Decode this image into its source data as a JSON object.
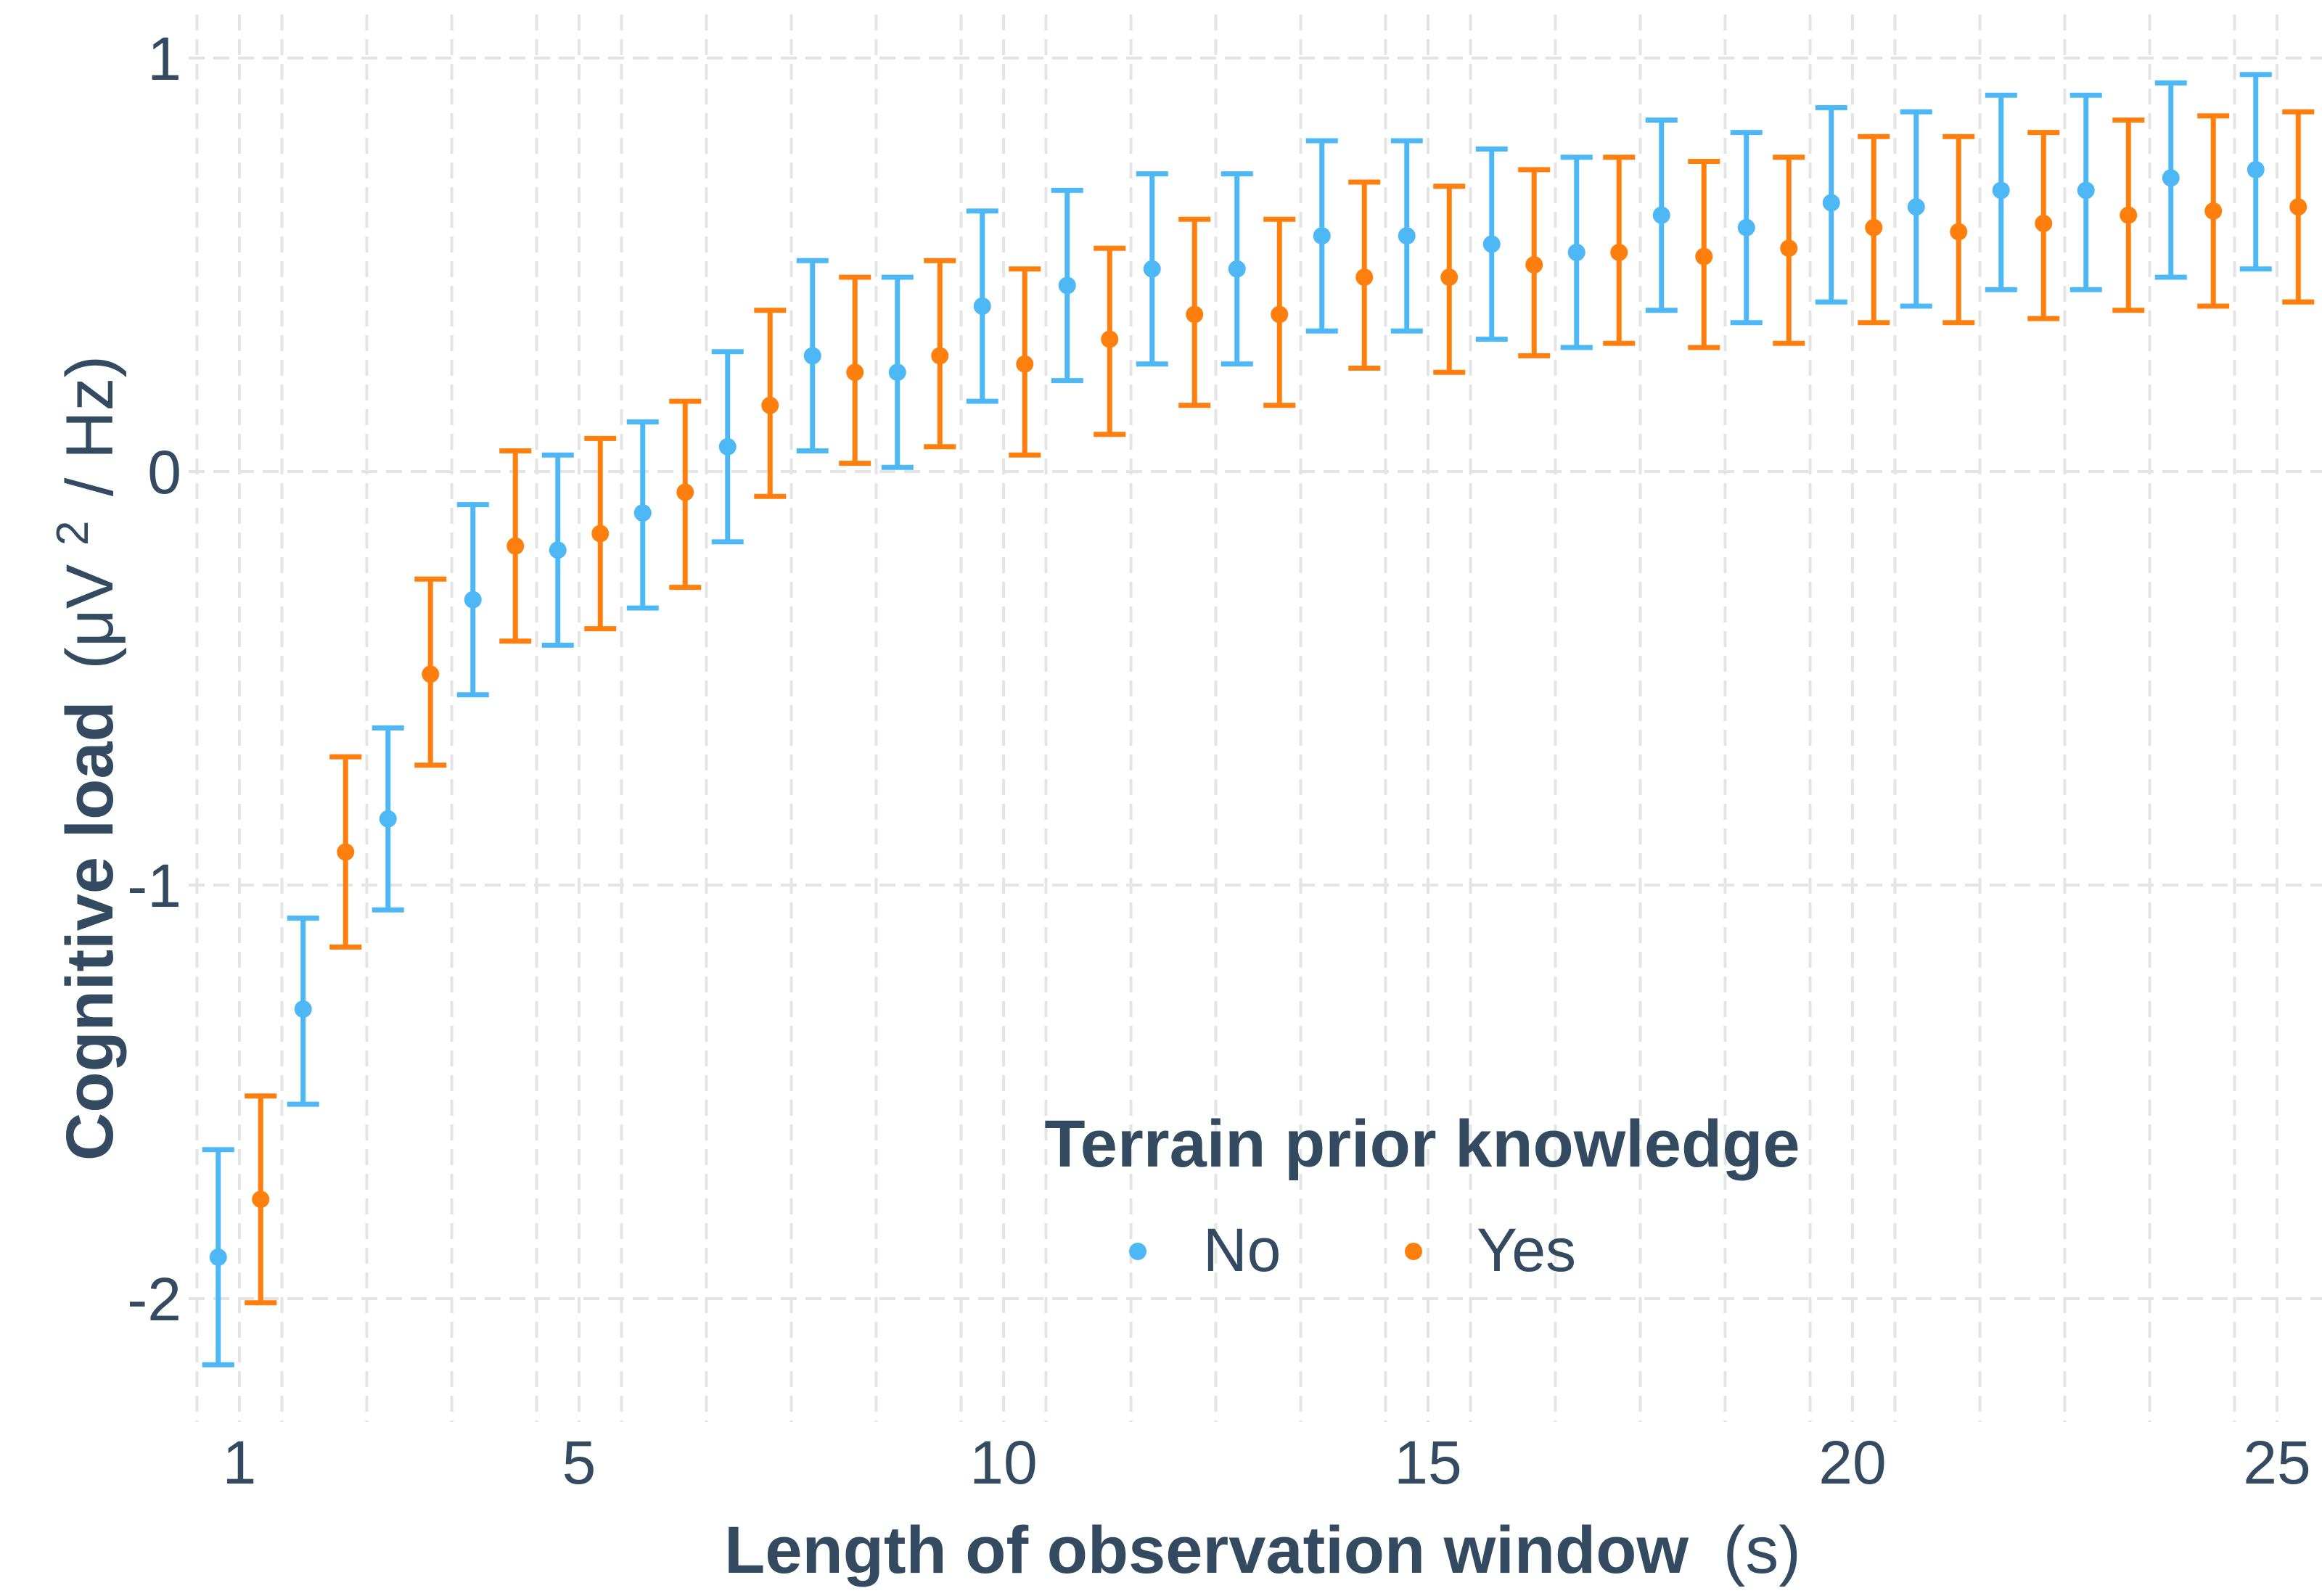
{
  "chart_data": {
    "type": "scatter",
    "title": "",
    "xlabel": {
      "bold": "Length of observation window",
      "unit": "(s)"
    },
    "ylabel": {
      "bold": "Cognitive load",
      "unit_open": "(μV",
      "unit_sup": "2",
      "unit_close": "/ Hz)"
    },
    "xlim": [
      0.9,
      25.6
    ],
    "ylim": [
      -2.3,
      1.1
    ],
    "x_ticks": [
      "1",
      "5",
      "10",
      "15",
      "20",
      "25"
    ],
    "x_tick_values": [
      1,
      5,
      10,
      15,
      20,
      25
    ],
    "y_ticks": [
      "1",
      "0",
      "-1",
      "-2"
    ],
    "y_tick_values": [
      1,
      0,
      -1,
      -2
    ],
    "grid": true,
    "legend": {
      "title": "Terrain prior knowledge",
      "placement": "bottom-right-inside",
      "entries": [
        {
          "label": "No",
          "color": "#4db8f5"
        },
        {
          "label": "Yes",
          "color": "#ff7f0e"
        }
      ]
    },
    "series": [
      {
        "name": "No",
        "color": "#4db8f5",
        "points": [
          {
            "x": 0.75,
            "y": -1.9,
            "lo": -2.16,
            "hi": -1.64
          },
          {
            "x": 1.75,
            "y": -1.3,
            "lo": -1.53,
            "hi": -1.08
          },
          {
            "x": 2.75,
            "y": -0.84,
            "lo": -1.06,
            "hi": -0.62
          },
          {
            "x": 3.75,
            "y": -0.31,
            "lo": -0.54,
            "hi": -0.08
          },
          {
            "x": 4.75,
            "y": -0.19,
            "lo": -0.42,
            "hi": 0.04
          },
          {
            "x": 5.75,
            "y": -0.1,
            "lo": -0.33,
            "hi": 0.12
          },
          {
            "x": 6.75,
            "y": 0.06,
            "lo": -0.17,
            "hi": 0.29
          },
          {
            "x": 7.75,
            "y": 0.28,
            "lo": 0.05,
            "hi": 0.51
          },
          {
            "x": 8.75,
            "y": 0.24,
            "lo": 0.01,
            "hi": 0.47
          },
          {
            "x": 9.75,
            "y": 0.4,
            "lo": 0.17,
            "hi": 0.63
          },
          {
            "x": 10.75,
            "y": 0.45,
            "lo": 0.22,
            "hi": 0.68
          },
          {
            "x": 11.75,
            "y": 0.49,
            "lo": 0.26,
            "hi": 0.72
          },
          {
            "x": 12.75,
            "y": 0.49,
            "lo": 0.26,
            "hi": 0.72
          },
          {
            "x": 13.75,
            "y": 0.57,
            "lo": 0.34,
            "hi": 0.8
          },
          {
            "x": 14.75,
            "y": 0.57,
            "lo": 0.34,
            "hi": 0.8
          },
          {
            "x": 15.75,
            "y": 0.55,
            "lo": 0.32,
            "hi": 0.78
          },
          {
            "x": 16.75,
            "y": 0.53,
            "lo": 0.3,
            "hi": 0.76
          },
          {
            "x": 17.75,
            "y": 0.62,
            "lo": 0.39,
            "hi": 0.85
          },
          {
            "x": 18.75,
            "y": 0.59,
            "lo": 0.36,
            "hi": 0.82
          },
          {
            "x": 19.75,
            "y": 0.65,
            "lo": 0.41,
            "hi": 0.88
          },
          {
            "x": 20.75,
            "y": 0.64,
            "lo": 0.4,
            "hi": 0.87
          },
          {
            "x": 21.75,
            "y": 0.68,
            "lo": 0.44,
            "hi": 0.91
          },
          {
            "x": 22.75,
            "y": 0.68,
            "lo": 0.44,
            "hi": 0.91
          },
          {
            "x": 23.75,
            "y": 0.71,
            "lo": 0.47,
            "hi": 0.94
          },
          {
            "x": 24.75,
            "y": 0.73,
            "lo": 0.49,
            "hi": 0.96
          }
        ]
      },
      {
        "name": "Yes",
        "color": "#ff7f0e",
        "points": [
          {
            "x": 1.25,
            "y": -1.76,
            "lo": -2.01,
            "hi": -1.51
          },
          {
            "x": 2.25,
            "y": -0.92,
            "lo": -1.15,
            "hi": -0.69
          },
          {
            "x": 3.25,
            "y": -0.49,
            "lo": -0.71,
            "hi": -0.26
          },
          {
            "x": 4.25,
            "y": -0.18,
            "lo": -0.41,
            "hi": 0.05
          },
          {
            "x": 5.25,
            "y": -0.15,
            "lo": -0.38,
            "hi": 0.08
          },
          {
            "x": 6.25,
            "y": -0.05,
            "lo": -0.28,
            "hi": 0.17
          },
          {
            "x": 7.25,
            "y": 0.16,
            "lo": -0.06,
            "hi": 0.39
          },
          {
            "x": 8.25,
            "y": 0.24,
            "lo": 0.02,
            "hi": 0.47
          },
          {
            "x": 9.25,
            "y": 0.28,
            "lo": 0.06,
            "hi": 0.51
          },
          {
            "x": 10.25,
            "y": 0.26,
            "lo": 0.04,
            "hi": 0.49
          },
          {
            "x": 11.25,
            "y": 0.32,
            "lo": 0.09,
            "hi": 0.54
          },
          {
            "x": 12.25,
            "y": 0.38,
            "lo": 0.16,
            "hi": 0.61
          },
          {
            "x": 13.25,
            "y": 0.38,
            "lo": 0.16,
            "hi": 0.61
          },
          {
            "x": 14.25,
            "y": 0.47,
            "lo": 0.25,
            "hi": 0.7
          },
          {
            "x": 15.25,
            "y": 0.47,
            "lo": 0.24,
            "hi": 0.69
          },
          {
            "x": 16.25,
            "y": 0.5,
            "lo": 0.28,
            "hi": 0.73
          },
          {
            "x": 17.25,
            "y": 0.53,
            "lo": 0.31,
            "hi": 0.76
          },
          {
            "x": 18.25,
            "y": 0.52,
            "lo": 0.3,
            "hi": 0.75
          },
          {
            "x": 19.25,
            "y": 0.54,
            "lo": 0.31,
            "hi": 0.76
          },
          {
            "x": 20.25,
            "y": 0.59,
            "lo": 0.36,
            "hi": 0.81
          },
          {
            "x": 21.25,
            "y": 0.58,
            "lo": 0.36,
            "hi": 0.81
          },
          {
            "x": 22.25,
            "y": 0.6,
            "lo": 0.37,
            "hi": 0.82
          },
          {
            "x": 23.25,
            "y": 0.62,
            "lo": 0.39,
            "hi": 0.85
          },
          {
            "x": 24.25,
            "y": 0.63,
            "lo": 0.4,
            "hi": 0.86
          },
          {
            "x": 25.25,
            "y": 0.64,
            "lo": 0.41,
            "hi": 0.87
          }
        ]
      }
    ]
  }
}
